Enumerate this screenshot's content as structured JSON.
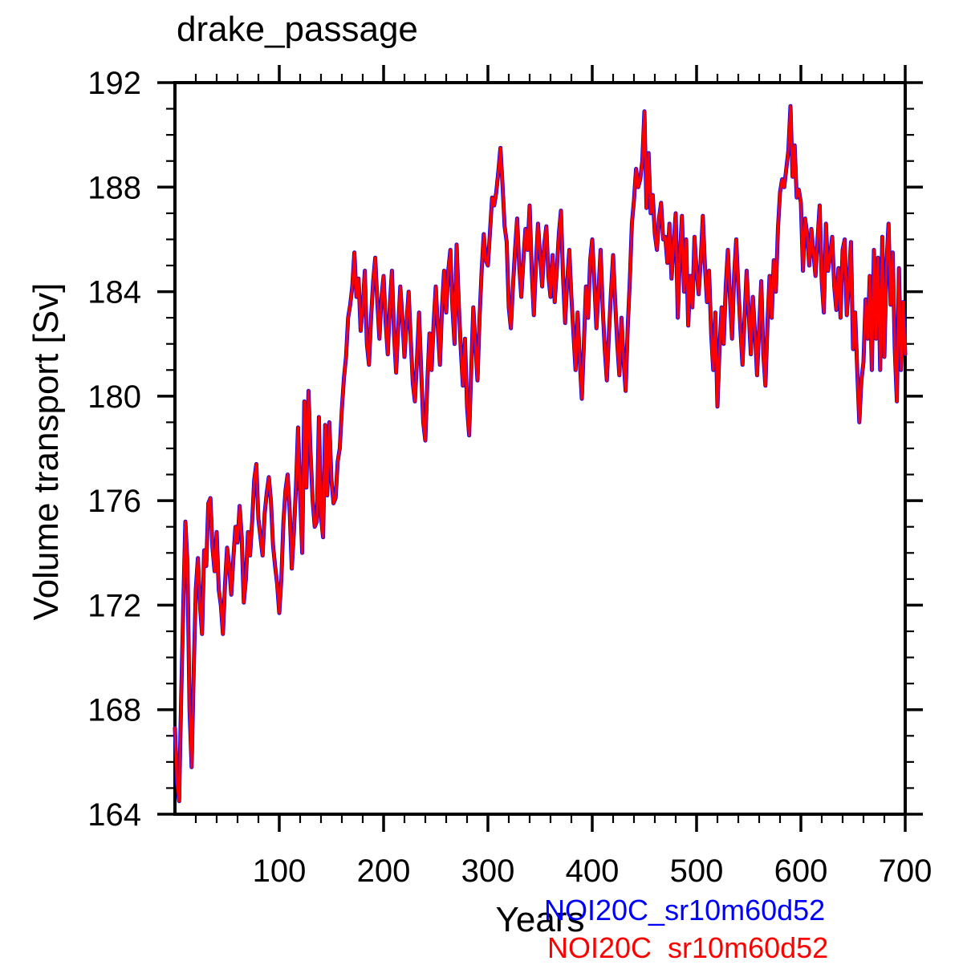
{
  "chart_data": {
    "type": "line",
    "title": "drake_passage",
    "xlabel": "Years",
    "ylabel": "Volume transport [Sv]",
    "xlim": [
      0,
      700
    ],
    "ylim": [
      164,
      192
    ],
    "grid": false,
    "axes": {
      "x_major_ticks": [
        100,
        200,
        300,
        400,
        500,
        600,
        700
      ],
      "x_minor_step": 20,
      "y_major_ticks": [
        164,
        168,
        172,
        176,
        180,
        184,
        188,
        192
      ],
      "y_minor_step": 1,
      "ticks_outward": true,
      "axis_color": "#000000"
    },
    "legend": {
      "position": "bottom-right-below-axis",
      "entries": [
        {
          "label": "NOI20C_sr10m60d52",
          "color": "#0000ff"
        },
        {
          "label": "NOI20C  sr10m60d52",
          "color": "#ff0000"
        }
      ]
    },
    "series": [
      {
        "name": "NOI20C_sr10m60d52",
        "color": "#0000ff",
        "note": "drawn first, hidden beneath red curve (visible only as fringe)"
      },
      {
        "name": "NOI20C  sr10m60d52",
        "color": "#ff0000",
        "x_start": 0,
        "x_step": 2,
        "values": [
          167.3,
          165.2,
          164.5,
          168.5,
          172.0,
          175.2,
          173.6,
          168.0,
          165.8,
          169.5,
          172.6,
          173.8,
          172.0,
          170.9,
          174.1,
          173.5,
          175.9,
          176.1,
          174.2,
          173.3,
          174.8,
          172.6,
          172.0,
          170.9,
          172.8,
          174.2,
          173.5,
          172.4,
          173.8,
          175.0,
          174.4,
          175.8,
          174.6,
          172.1,
          173.0,
          174.8,
          173.9,
          175.2,
          176.8,
          177.4,
          175.3,
          174.6,
          173.9,
          175.5,
          176.3,
          176.9,
          176.0,
          174.3,
          173.5,
          172.8,
          171.7,
          173.0,
          175.2,
          176.4,
          177.0,
          175.6,
          173.4,
          174.8,
          176.5,
          178.8,
          176.2,
          174.0,
          179.8,
          176.5,
          180.2,
          177.8,
          176.0,
          175.0,
          175.2,
          179.2,
          175.4,
          174.6,
          178.9,
          176.2,
          179.0,
          176.8,
          175.9,
          176.1,
          177.5,
          178.0,
          179.5,
          180.7,
          181.5,
          183.0,
          183.5,
          184.2,
          185.5,
          183.8,
          184.5,
          182.5,
          183.4,
          184.8,
          182.0,
          181.2,
          183.0,
          184.4,
          185.3,
          183.6,
          182.2,
          183.8,
          184.6,
          182.8,
          181.6,
          183.5,
          184.8,
          182.4,
          180.9,
          182.6,
          184.2,
          183.0,
          181.5,
          182.8,
          184.0,
          182.2,
          180.5,
          179.8,
          181.4,
          183.2,
          181.0,
          179.0,
          178.3,
          180.6,
          182.4,
          181.0,
          182.8,
          184.2,
          182.6,
          181.2,
          183.4,
          184.8,
          183.2,
          184.8,
          185.6,
          183.4,
          182.0,
          185.8,
          183.6,
          181.8,
          180.4,
          182.2,
          179.6,
          178.5,
          181.0,
          183.4,
          182.0,
          180.6,
          183.0,
          184.8,
          186.2,
          185.2,
          185.0,
          186.3,
          187.6,
          187.3,
          187.8,
          188.6,
          189.5,
          188.1,
          186.5,
          185.9,
          183.4,
          182.6,
          184.2,
          185.6,
          186.8,
          185.0,
          183.8,
          185.2,
          186.4,
          185.6,
          187.3,
          184.8,
          183.1,
          185.0,
          186.6,
          185.4,
          184.2,
          185.8,
          186.5,
          184.6,
          183.8,
          185.4,
          183.6,
          184.8,
          186.2,
          187.1,
          184.6,
          182.8,
          184.4,
          185.6,
          183.8,
          182.4,
          181.0,
          183.2,
          181.4,
          179.9,
          182.0,
          184.2,
          183.0,
          185.2,
          186.0,
          184.4,
          182.6,
          184.0,
          185.6,
          183.4,
          181.8,
          180.6,
          182.4,
          184.0,
          185.4,
          183.6,
          182.0,
          180.8,
          183.0,
          181.4,
          180.2,
          182.6,
          184.4,
          186.6,
          187.5,
          188.7,
          188.0,
          188.3,
          189.0,
          190.9,
          187.2,
          189.3,
          187.0,
          187.7,
          186.2,
          185.6,
          186.8,
          187.4,
          186.0,
          186.1,
          185.1,
          186.6,
          184.5,
          185.8,
          187.0,
          183.0,
          185.4,
          186.9,
          184.0,
          186.0,
          182.7,
          184.6,
          183.4,
          186.1,
          184.8,
          183.9,
          185.2,
          186.9,
          185.0,
          183.6,
          184.8,
          182.4,
          181.0,
          183.2,
          179.6,
          181.8,
          183.4,
          182.0,
          184.2,
          185.6,
          183.8,
          182.2,
          184.6,
          186.0,
          184.2,
          182.6,
          181.2,
          183.0,
          184.8,
          183.2,
          181.6,
          183.8,
          182.4,
          180.8,
          182.6,
          184.4,
          181.6,
          180.4,
          182.8,
          184.6,
          183.0,
          185.2,
          184.0,
          186.4,
          187.8,
          188.3,
          188.0,
          188.7,
          189.4,
          191.1,
          188.4,
          189.6,
          187.6,
          187.9,
          187.4,
          184.8,
          186.8,
          186.2,
          185.0,
          186.4,
          185.5,
          184.6,
          186.0,
          187.3,
          184.4,
          183.2,
          186.6,
          184.8,
          185.4,
          186.1,
          184.2,
          183.3,
          184.9,
          183.0,
          185.6,
          186.0,
          183.1,
          184.4,
          185.9,
          181.8,
          183.2,
          181.0,
          179.0,
          180.6,
          181.3,
          183.7,
          182.2,
          184.6,
          181.0,
          185.6,
          182.2,
          185.3,
          181.0,
          186.1,
          181.5,
          185.0,
          186.6,
          183.5,
          185.5,
          181.8,
          179.8,
          184.9,
          181.0,
          183.6,
          181.6
        ]
      }
    ]
  }
}
